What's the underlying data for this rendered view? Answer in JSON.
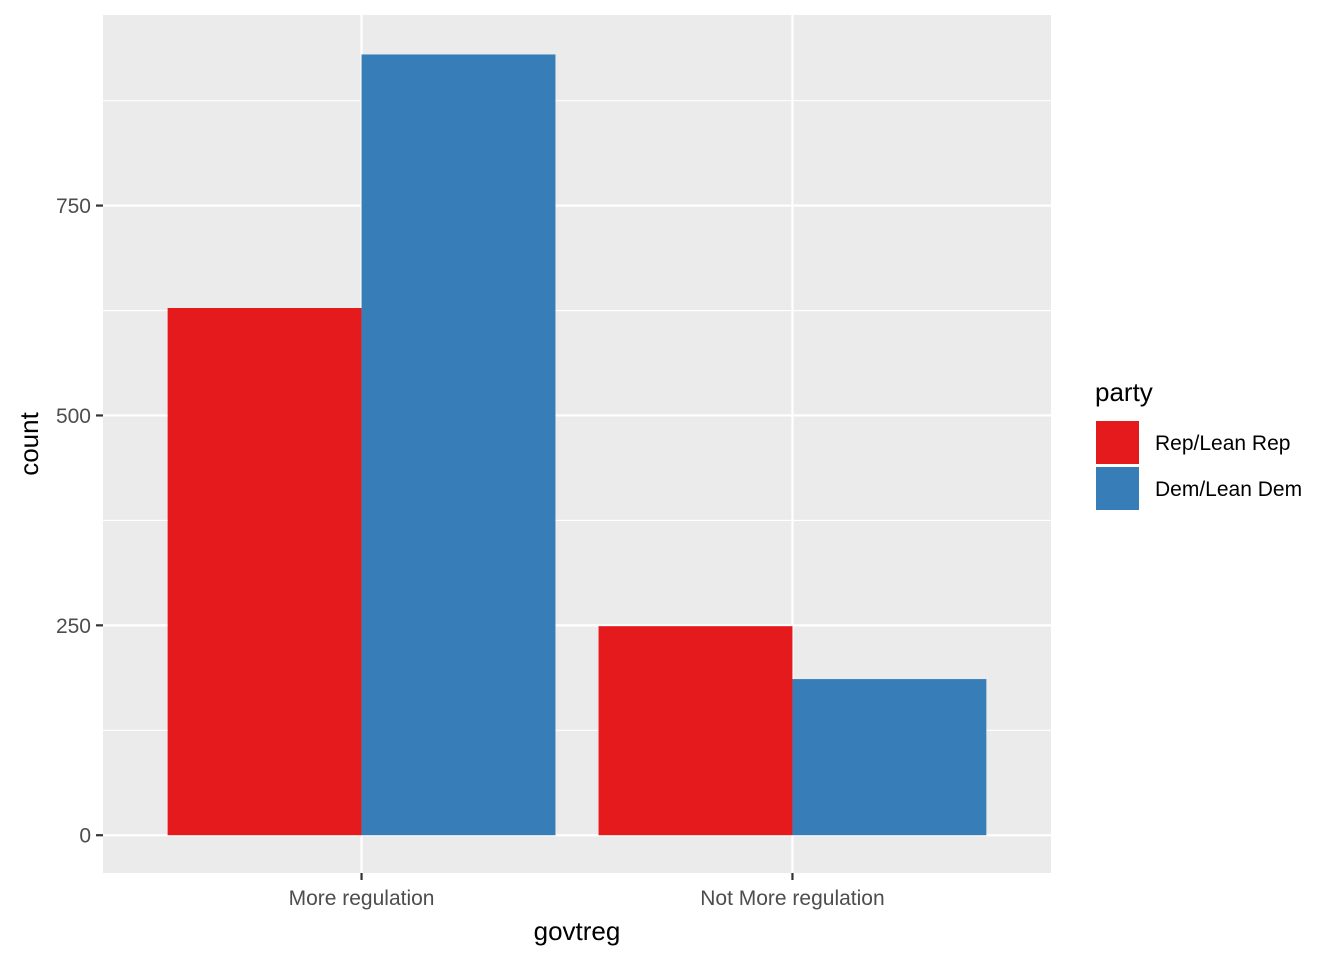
{
  "chart_data": {
    "type": "bar",
    "categories": [
      "More regulation",
      "Not More regulation"
    ],
    "series": [
      {
        "name": "Rep/Lean Rep",
        "values": [
          628,
          249
        ],
        "color": "#E41A1C"
      },
      {
        "name": "Dem/Lean Dem",
        "values": [
          930,
          186
        ],
        "color": "#377EB8"
      }
    ],
    "xlabel": "govtreg",
    "ylabel": "count",
    "ylim": [
      -45,
      977
    ],
    "yticks": [
      0,
      250,
      500,
      750
    ],
    "ytick_labels": [
      "0",
      "250",
      "500",
      "750"
    ],
    "legend": {
      "title": "party",
      "placement": "right"
    },
    "grid": true,
    "panel_background": "#EBEBEB",
    "grid_color": "#FFFFFF"
  }
}
